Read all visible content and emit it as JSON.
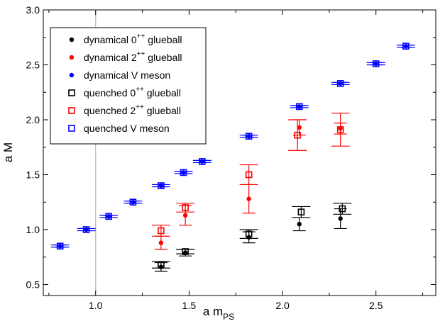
{
  "chart_data": {
    "type": "scatter",
    "xlabel": "a m",
    "xlabel_sub": "PS",
    "ylabel": "a M",
    "xlim": [
      0.72,
      2.82
    ],
    "ylim": [
      0.4,
      3.0
    ],
    "x_ticks": [
      1.0,
      1.5,
      2.0,
      2.5
    ],
    "x_tick_labels": [
      "1.0",
      "1.5",
      "2.0",
      "2.5"
    ],
    "y_ticks": [
      0.5,
      1.0,
      1.5,
      2.0,
      2.5,
      3.0
    ],
    "y_tick_labels": [
      "0.5",
      "1.0",
      "1.5",
      "2.0",
      "2.5",
      "3.0"
    ],
    "reference_line_x": 1.0,
    "grid": false,
    "legend_position": "top-left",
    "series": [
      {
        "legend_main": "dynamical 0",
        "legend_sup": "++",
        "legend_tail": " glueball",
        "color": "#000000",
        "marker": "filled-circle",
        "points": [
          [
            1.35,
            0.66,
            0.04
          ],
          [
            1.48,
            0.79,
            0.03
          ],
          [
            1.82,
            0.93,
            0.05
          ],
          [
            2.09,
            1.05,
            0.06
          ],
          [
            2.31,
            1.1,
            0.09
          ]
        ]
      },
      {
        "legend_main": "dynamical 2",
        "legend_sup": "++",
        "legend_tail": " glueball",
        "color": "#ff0000",
        "marker": "filled-circle",
        "points": [
          [
            1.35,
            0.88,
            0.06
          ],
          [
            1.48,
            1.13,
            0.09
          ],
          [
            1.82,
            1.28,
            0.13
          ],
          [
            2.09,
            1.93,
            0.07
          ],
          [
            2.31,
            1.92,
            0.05
          ]
        ]
      },
      {
        "legend_main": "dynamical V meson",
        "legend_sup": "",
        "legend_tail": "",
        "color": "#0000ff",
        "marker": "filled-circle",
        "points": [
          [
            0.81,
            0.85,
            0.01
          ],
          [
            0.95,
            1.0,
            0.01
          ],
          [
            1.07,
            1.12,
            0.01
          ],
          [
            1.2,
            1.25,
            0.01
          ],
          [
            1.35,
            1.4,
            0.01
          ],
          [
            1.47,
            1.52,
            0.01
          ],
          [
            1.57,
            1.62,
            0.01
          ],
          [
            1.82,
            1.85,
            0.01
          ],
          [
            2.09,
            2.12,
            0.01
          ],
          [
            2.31,
            2.33,
            0.01
          ],
          [
            2.5,
            2.51,
            0.01
          ],
          [
            2.66,
            2.67,
            0.01
          ]
        ]
      },
      {
        "legend_main": "quenched 0",
        "legend_sup": "++",
        "legend_tail": " glueball",
        "color": "#000000",
        "marker": "open-square",
        "points": [
          [
            1.35,
            0.68,
            0.03
          ],
          [
            1.48,
            0.8,
            0.02
          ],
          [
            1.82,
            0.96,
            0.04
          ],
          [
            2.1,
            1.16,
            0.05
          ],
          [
            2.32,
            1.19,
            0.05
          ]
        ]
      },
      {
        "legend_main": "quenched 2",
        "legend_sup": "++",
        "legend_tail": " glueball",
        "color": "#ff0000",
        "marker": "open-square",
        "points": [
          [
            1.35,
            0.99,
            0.05
          ],
          [
            1.48,
            1.2,
            0.04
          ],
          [
            1.82,
            1.5,
            0.09
          ],
          [
            2.08,
            1.86,
            0.14
          ],
          [
            2.31,
            1.91,
            0.15
          ]
        ]
      },
      {
        "legend_main": "quenched V meson",
        "legend_sup": "",
        "legend_tail": "",
        "color": "#0000ff",
        "marker": "open-square",
        "points": [
          [
            0.81,
            0.85,
            0.01
          ],
          [
            0.95,
            1.0,
            0.01
          ],
          [
            1.07,
            1.12,
            0.01
          ],
          [
            1.2,
            1.25,
            0.01
          ],
          [
            1.35,
            1.4,
            0.01
          ],
          [
            1.47,
            1.52,
            0.01
          ],
          [
            1.57,
            1.62,
            0.01
          ],
          [
            1.82,
            1.85,
            0.01
          ],
          [
            2.09,
            2.12,
            0.01
          ],
          [
            2.31,
            2.33,
            0.01
          ],
          [
            2.5,
            2.51,
            0.01
          ],
          [
            2.66,
            2.67,
            0.01
          ]
        ]
      }
    ]
  }
}
